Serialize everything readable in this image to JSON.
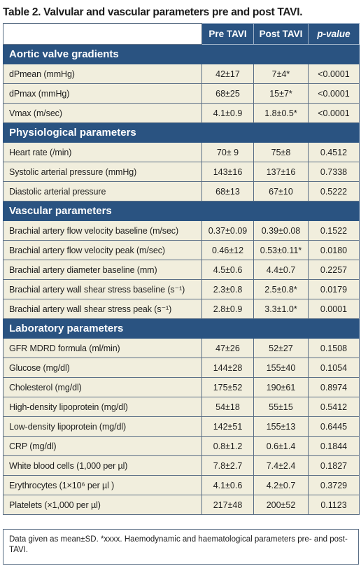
{
  "title": "Table 2. Valvular and vascular parameters pre and post TAVI.",
  "columns": {
    "pre": "Pre TAVI",
    "post": "Post TAVI",
    "p": "p-value"
  },
  "sections": [
    {
      "heading": "Aortic valve gradients",
      "rows": [
        {
          "label": "dPmean (mmHg)",
          "pre": "42±17",
          "post": "7±4*",
          "p": "<0.0001"
        },
        {
          "label": "dPmax (mmHg)",
          "pre": "68±25",
          "post": "15±7*",
          "p": "<0.0001"
        },
        {
          "label": "Vmax (m/sec)",
          "pre": "4.1±0.9",
          "post": "1.8±0.5*",
          "p": "<0.0001"
        }
      ]
    },
    {
      "heading": "Physiological parameters",
      "rows": [
        {
          "label": "Heart rate (/min)",
          "pre": "70± 9",
          "post": "75±8",
          "p": "0.4512"
        },
        {
          "label": "Systolic arterial pressure (mmHg)",
          "pre": "143±16",
          "post": "137±16",
          "p": "0.7338"
        },
        {
          "label": "Diastolic arterial pressure",
          "pre": "68±13",
          "post": "67±10",
          "p": "0.5222"
        }
      ]
    },
    {
      "heading": "Vascular parameters",
      "rows": [
        {
          "label": "Brachial artery flow velocity baseline (m/sec)",
          "pre": "0.37±0.09",
          "post": "0.39±0.08",
          "p": "0.1522"
        },
        {
          "label": "Brachial artery flow velocity peak (m/sec)",
          "pre": "0.46±12",
          "post": "0.53±0.11*",
          "p": "0.0180"
        },
        {
          "label": "Brachial artery diameter baseline (mm)",
          "pre": "4.5±0.6",
          "post": "4.4±0.7",
          "p": "0.2257"
        },
        {
          "label": "Brachial artery wall shear stress baseline (s⁻¹)",
          "pre": "2.3±0.8",
          "post": "2.5±0.8*",
          "p": "0.0179"
        },
        {
          "label": "Brachial artery wall shear stress peak (s⁻¹)",
          "pre": "2.8±0.9",
          "post": "3.3±1.0*",
          "p": "0.0001"
        }
      ]
    },
    {
      "heading": "Laboratory parameters",
      "rows": [
        {
          "label": "GFR MDRD formula (ml/min)",
          "pre": "47±26",
          "post": "52±27",
          "p": "0.1508"
        },
        {
          "label": "Glucose (mg/dl)",
          "pre": "144±28",
          "post": "155±40",
          "p": "0.1054"
        },
        {
          "label": "Cholesterol (mg/dl)",
          "pre": "175±52",
          "post": "190±61",
          "p": "0.8974"
        },
        {
          "label": "High-density lipoprotein (mg/dl)",
          "pre": "54±18",
          "post": "55±15",
          "p": "0.5412"
        },
        {
          "label": "Low-density lipoprotein (mg/dl)",
          "pre": "142±51",
          "post": "155±13",
          "p": "0.6445"
        },
        {
          "label": "CRP (mg/dl)",
          "pre": "0.8±1.2",
          "post": "0.6±1.4",
          "p": "0.1844"
        },
        {
          "label": "White blood cells (1,000 per µl)",
          "pre": "7.8±2.7",
          "post": "7.4±2.4",
          "p": "0.1827"
        },
        {
          "label": "Erythrocytes (1×10⁶ per µl )",
          "pre": "4.1±0.6",
          "post": "4.2±0.7",
          "p": "0.3729"
        },
        {
          "label": "Platelets (×1,000 per µl)",
          "pre": "217±48",
          "post": "200±52",
          "p": "0.1123"
        }
      ]
    }
  ],
  "footnote": "Data given as mean±SD. *xxxx. Haemodynamic and haematological parameters pre- and post-TAVI."
}
